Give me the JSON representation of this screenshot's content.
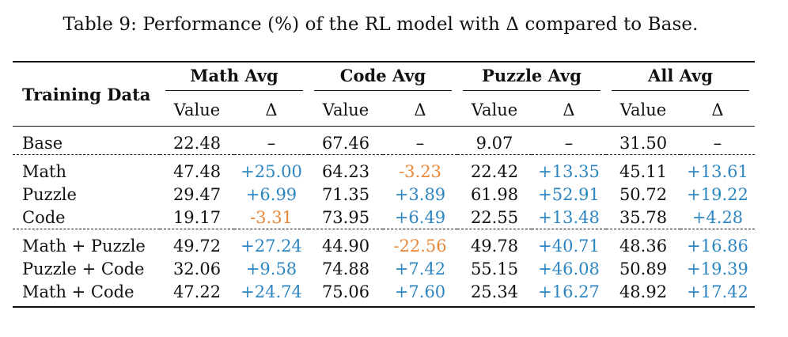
{
  "caption": "Table 9: Performance (%) of the RL model with Δ compared to Base.",
  "headers": {
    "training_data": "Training Data",
    "groups": [
      "Math Avg",
      "Code Avg",
      "Puzzle Avg",
      "All Avg"
    ],
    "value_label": "Value",
    "delta_label": "Δ"
  },
  "rows": [
    {
      "name": "Base",
      "cells": [
        "22.48",
        "–",
        "67.46",
        "–",
        "9.07",
        "–",
        "31.50",
        "–"
      ]
    },
    {
      "name": "Math",
      "cells": [
        "47.48",
        "+25.00",
        "64.23",
        "-3.23",
        "22.42",
        "+13.35",
        "45.11",
        "+13.61"
      ]
    },
    {
      "name": "Puzzle",
      "cells": [
        "29.47",
        "+6.99",
        "71.35",
        "+3.89",
        "61.98",
        "+52.91",
        "50.72",
        "+19.22"
      ]
    },
    {
      "name": "Code",
      "cells": [
        "19.17",
        "-3.31",
        "73.95",
        "+6.49",
        "22.55",
        "+13.48",
        "35.78",
        "+4.28"
      ]
    },
    {
      "name": "Math + Puzzle",
      "cells": [
        "49.72",
        "+27.24",
        "44.90",
        "-22.56",
        "49.78",
        "+40.71",
        "48.36",
        "+16.86"
      ]
    },
    {
      "name": "Puzzle + Code",
      "cells": [
        "32.06",
        "+9.58",
        "74.88",
        "+7.42",
        "55.15",
        "+46.08",
        "50.89",
        "+19.39"
      ]
    },
    {
      "name": "Math + Code",
      "cells": [
        "47.22",
        "+24.74",
        "75.06",
        "+7.60",
        "25.34",
        "+16.27",
        "48.92",
        "+17.42"
      ]
    }
  ],
  "colors": {
    "positive": "#2e86c1",
    "negative": "#e8883a"
  }
}
